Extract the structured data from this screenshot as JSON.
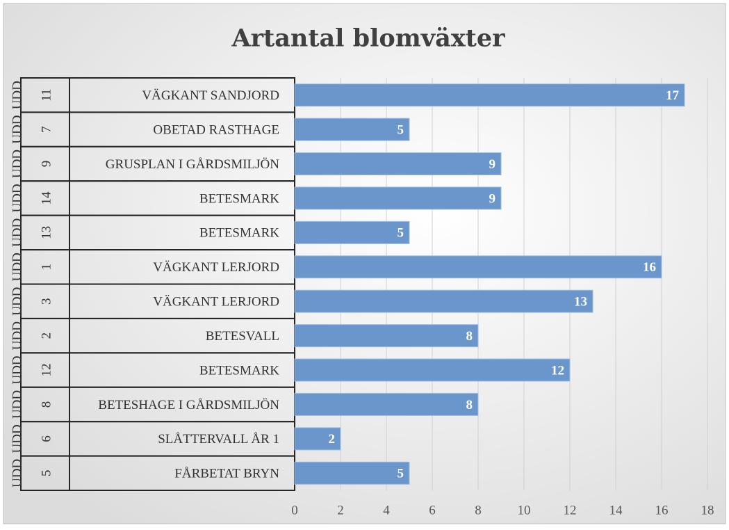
{
  "chart_data": {
    "type": "bar",
    "orientation": "horizontal",
    "title": "Artantal blomväxter",
    "categories": [
      "VÄGKANT SANDJORD",
      "OBETAD RASTHAGE",
      "GRUSPLAN  I GÅRDSMILJÖN",
      "BETESMARK",
      "BETESMARK",
      "VÄGKANT LERJORD",
      "VÄGKANT LERJORD",
      "BETESVALL",
      "BETESMARK",
      "BETESHAGE I GÅRDSMILJÖN",
      "SLÅTTERVALL ÅR 1",
      "FÅRBETAT BRYN"
    ],
    "category_groups": [
      "11",
      "7",
      "9",
      "14",
      "13",
      "1",
      "3",
      "2",
      "12",
      "8",
      "6",
      "5"
    ],
    "category_outer": [
      "UDD",
      "UDD",
      "UDD",
      "UDD",
      "UDD",
      "UDD",
      "UDD",
      "UDD",
      "UDD",
      "UDD",
      "UDD",
      "UDD"
    ],
    "values": [
      17,
      5,
      9,
      9,
      5,
      16,
      13,
      8,
      12,
      8,
      2,
      5
    ],
    "color": "#6a96cc",
    "xlim": [
      0,
      18
    ],
    "xticks": [
      0,
      2,
      4,
      6,
      8,
      10,
      12,
      14,
      16,
      18
    ],
    "grid": true
  }
}
